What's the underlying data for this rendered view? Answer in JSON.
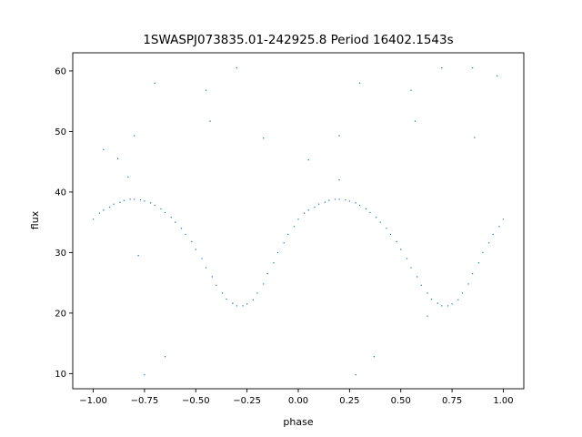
{
  "chart_data": {
    "type": "scatter",
    "title": "1SWASPJ073835.01-242925.8 Period 16402.1543s",
    "xlabel": "phase",
    "ylabel": "flux",
    "xlim": [
      -1.1,
      1.1
    ],
    "ylim": [
      7.5,
      63
    ],
    "xticks": [
      -1.0,
      -0.75,
      -0.5,
      -0.25,
      0.0,
      0.25,
      0.5,
      0.75,
      1.0
    ],
    "xtick_labels": [
      "−1.00",
      "−0.75",
      "−0.50",
      "−0.25",
      "0.00",
      "0.25",
      "0.50",
      "0.75",
      "1.00"
    ],
    "yticks": [
      10,
      20,
      30,
      40,
      50,
      60
    ],
    "ytick_labels": [
      "10",
      "20",
      "30",
      "40",
      "50",
      "60"
    ],
    "grid": false,
    "marker_color": "#1f77b4",
    "series": [
      {
        "points": [
          [
            -1.0,
            35.5
          ],
          [
            -0.97,
            36.5
          ],
          [
            -0.95,
            37.0
          ],
          [
            -0.92,
            37.5
          ],
          [
            -0.9,
            38.0
          ],
          [
            -0.87,
            38.3
          ],
          [
            -0.85,
            38.6
          ],
          [
            -0.82,
            38.8
          ],
          [
            -0.8,
            38.8
          ],
          [
            -0.77,
            38.7
          ],
          [
            -0.75,
            38.5
          ],
          [
            -0.72,
            38.2
          ],
          [
            -0.7,
            37.8
          ],
          [
            -0.67,
            37.2
          ],
          [
            -0.65,
            36.6
          ],
          [
            -0.62,
            35.8
          ],
          [
            -0.6,
            35.0
          ],
          [
            -0.57,
            34.0
          ],
          [
            -0.55,
            33.0
          ],
          [
            -0.52,
            31.8
          ],
          [
            -0.5,
            30.5
          ],
          [
            -0.47,
            29.0
          ],
          [
            -0.45,
            27.5
          ],
          [
            -0.42,
            26.0
          ],
          [
            -0.4,
            24.6
          ],
          [
            -0.37,
            23.3
          ],
          [
            -0.35,
            22.3
          ],
          [
            -0.32,
            21.6
          ],
          [
            -0.3,
            21.2
          ],
          [
            -0.27,
            21.2
          ],
          [
            -0.25,
            21.5
          ],
          [
            -0.22,
            22.2
          ],
          [
            -0.2,
            23.3
          ],
          [
            -0.17,
            24.8
          ],
          [
            -0.15,
            26.5
          ],
          [
            -0.12,
            28.3
          ],
          [
            -0.1,
            30.0
          ],
          [
            -0.07,
            31.6
          ],
          [
            -0.05,
            33.0
          ],
          [
            -0.02,
            34.3
          ],
          [
            0.0,
            35.5
          ],
          [
            0.03,
            36.5
          ],
          [
            0.05,
            37.0
          ],
          [
            0.08,
            37.5
          ],
          [
            0.1,
            38.0
          ],
          [
            0.13,
            38.3
          ],
          [
            0.15,
            38.6
          ],
          [
            0.18,
            38.8
          ],
          [
            0.2,
            38.8
          ],
          [
            0.23,
            38.7
          ],
          [
            0.25,
            38.5
          ],
          [
            0.28,
            38.2
          ],
          [
            0.3,
            37.8
          ],
          [
            0.33,
            37.2
          ],
          [
            0.35,
            36.6
          ],
          [
            0.38,
            35.8
          ],
          [
            0.4,
            35.0
          ],
          [
            0.43,
            34.0
          ],
          [
            0.45,
            33.0
          ],
          [
            0.48,
            31.8
          ],
          [
            0.5,
            30.5
          ],
          [
            0.53,
            29.0
          ],
          [
            0.55,
            27.5
          ],
          [
            0.58,
            26.0
          ],
          [
            0.6,
            24.6
          ],
          [
            0.63,
            23.3
          ],
          [
            0.65,
            22.3
          ],
          [
            0.68,
            21.6
          ],
          [
            0.7,
            21.2
          ],
          [
            0.73,
            21.2
          ],
          [
            0.75,
            21.5
          ],
          [
            0.78,
            22.2
          ],
          [
            0.8,
            23.3
          ],
          [
            0.83,
            24.8
          ],
          [
            0.85,
            26.5
          ],
          [
            0.88,
            28.3
          ],
          [
            0.9,
            30.0
          ],
          [
            0.93,
            31.6
          ],
          [
            0.95,
            33.0
          ],
          [
            0.98,
            34.3
          ],
          [
            1.0,
            35.5
          ],
          [
            -0.95,
            47.0
          ],
          [
            -0.88,
            45.5
          ],
          [
            -0.8,
            49.3
          ],
          [
            -0.7,
            58.0
          ],
          [
            -0.45,
            56.8
          ],
          [
            -0.43,
            51.7
          ],
          [
            -0.3,
            60.5
          ],
          [
            -0.17,
            48.9
          ],
          [
            0.05,
            45.3
          ],
          [
            0.2,
            49.3
          ],
          [
            0.3,
            58.0
          ],
          [
            0.55,
            56.8
          ],
          [
            0.57,
            51.7
          ],
          [
            0.7,
            60.5
          ],
          [
            0.85,
            60.5
          ],
          [
            0.86,
            49.0
          ],
          [
            0.97,
            59.2
          ],
          [
            -0.75,
            9.8
          ],
          [
            -0.65,
            12.8
          ],
          [
            0.37,
            12.8
          ],
          [
            0.28,
            9.8
          ],
          [
            -0.78,
            29.5
          ],
          [
            0.2,
            42.0
          ],
          [
            -0.83,
            42.5
          ],
          [
            0.63,
            19.5
          ]
        ]
      }
    ]
  }
}
